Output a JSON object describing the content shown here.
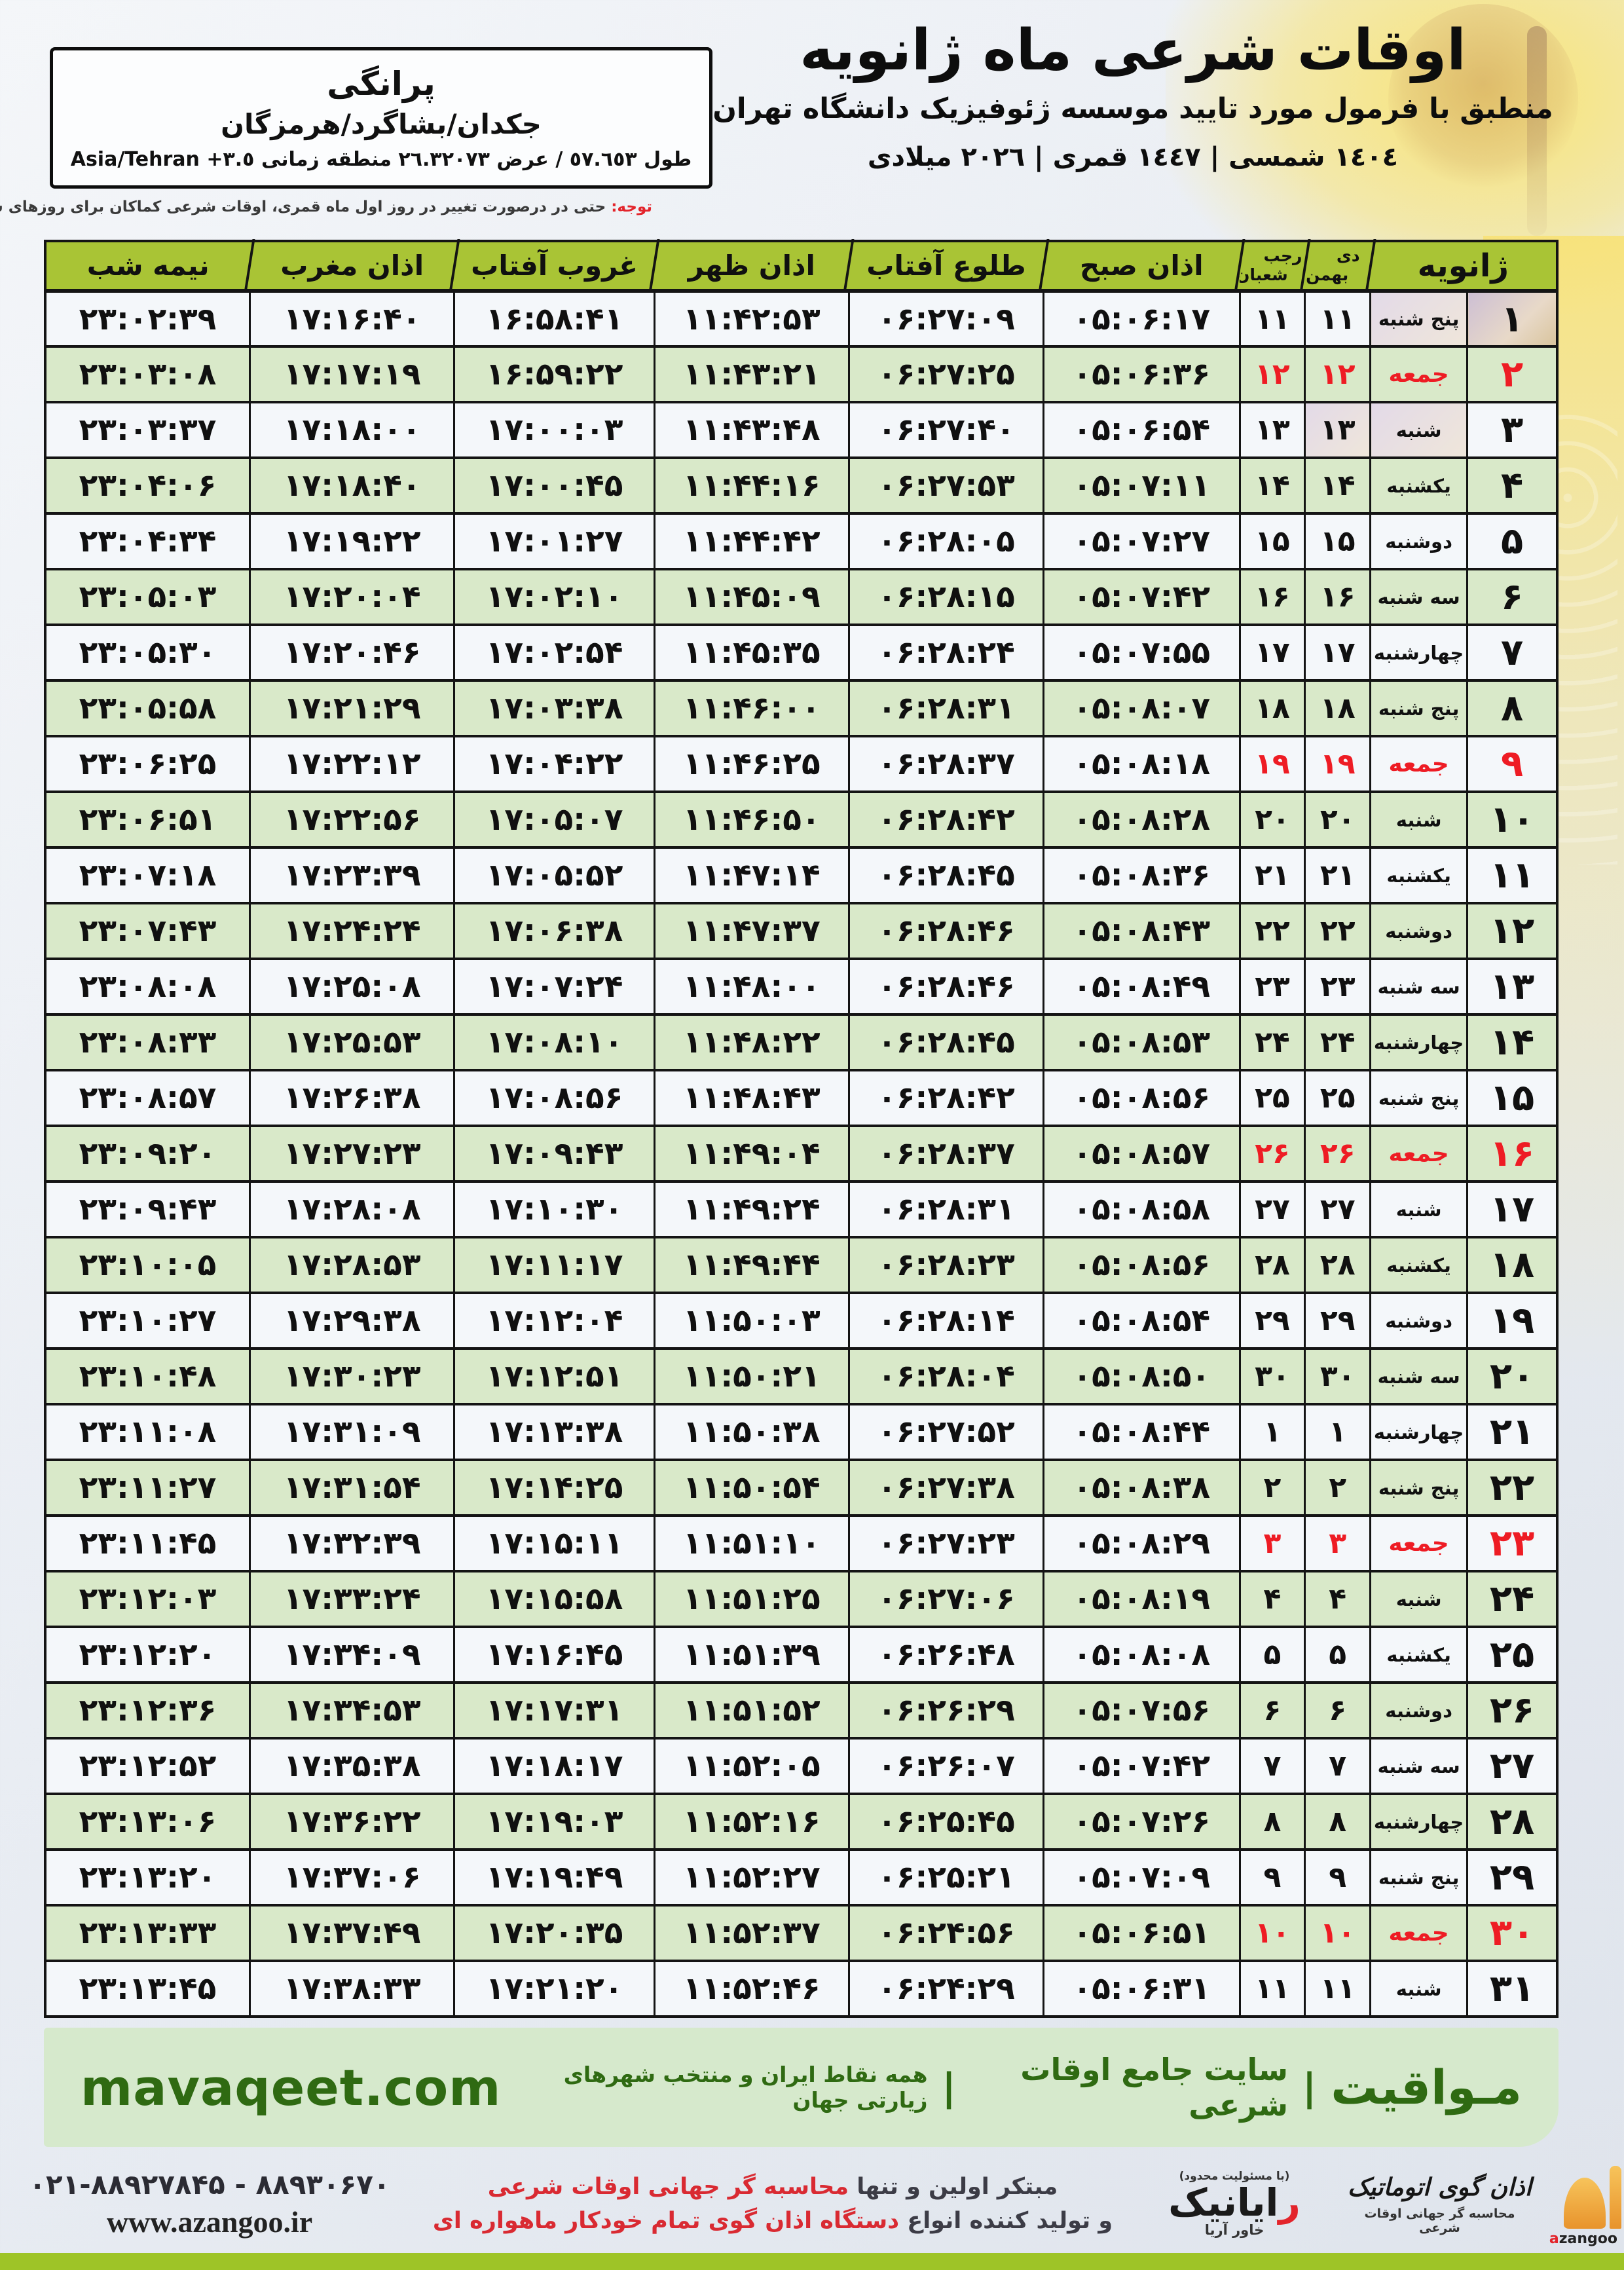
{
  "header": {
    "title": "اوقات شرعی ماه ژانویه",
    "subtitle": "منطبق با فرمول مورد تایید موسسه ژئوفیزیک دانشگاه تهران",
    "dates_line": "١٤٠٤ شمسی | ١٤٤٧ قمری | ٢٠٢٦ میلادی"
  },
  "location": {
    "name": "پرانگی",
    "region": "جکدان/بشاگرد/هرمزگان",
    "coords": "طول ٥٧.٦٥٣ / عرض ٢٦.٣٢٠٧٣ منطقه زمانی ٣.٥+ Asia/Tehran"
  },
  "note": {
    "label": "توجه:",
    "text": " حتی در درصورت تغییر در روز اول ماه قمری، اوقات شرعی کماکان برای روزهای شمسی و میلادی معتبر است."
  },
  "table": {
    "headers": {
      "january": "ژانویه",
      "jalali_top": "دی",
      "jalali_bottom": "بهمن",
      "hijri_top": "رجب",
      "hijri_bottom": "شعبان",
      "sobh": "اذان صبح",
      "tolu": "طلوع آفتاب",
      "zohr": "اذان ظهر",
      "ghorub": "غروب آفتاب",
      "maghreb": "اذان مغرب",
      "nimeshab": "نیمه شب"
    },
    "columns": [
      "day",
      "weekday",
      "jalali",
      "hijri",
      "sobh",
      "tolu",
      "zohr",
      "ghorub",
      "maghreb",
      "nimeshab"
    ],
    "rows": [
      {
        "day": "۱",
        "weekday": "پنج شنبه",
        "jalali": "۱۱",
        "hijri": "۱۱",
        "sobh": "۰۵:۰۶:۱۷",
        "tolu": "۰۶:۲۷:۰۹",
        "zohr": "۱۱:۴۲:۵۳",
        "ghorub": "۱۶:۵۸:۴۱",
        "maghreb": "۱۷:۱۶:۴۰",
        "nimeshab": "۲۳:۰۲:۳۹",
        "friday": false
      },
      {
        "day": "۲",
        "weekday": "جمعه",
        "jalali": "۱۲",
        "hijri": "۱۲",
        "sobh": "۰۵:۰۶:۳۶",
        "tolu": "۰۶:۲۷:۲۵",
        "zohr": "۱۱:۴۳:۲۱",
        "ghorub": "۱۶:۵۹:۲۲",
        "maghreb": "۱۷:۱۷:۱۹",
        "nimeshab": "۲۳:۰۳:۰۸",
        "friday": true
      },
      {
        "day": "۳",
        "weekday": "شنبه",
        "jalali": "۱۳",
        "hijri": "۱۳",
        "sobh": "۰۵:۰۶:۵۴",
        "tolu": "۰۶:۲۷:۴۰",
        "zohr": "۱۱:۴۳:۴۸",
        "ghorub": "۱۷:۰۰:۰۳",
        "maghreb": "۱۷:۱۸:۰۰",
        "nimeshab": "۲۳:۰۳:۳۷",
        "friday": false
      },
      {
        "day": "۴",
        "weekday": "یکشنبه",
        "jalali": "۱۴",
        "hijri": "۱۴",
        "sobh": "۰۵:۰۷:۱۱",
        "tolu": "۰۶:۲۷:۵۳",
        "zohr": "۱۱:۴۴:۱۶",
        "ghorub": "۱۷:۰۰:۴۵",
        "maghreb": "۱۷:۱۸:۴۰",
        "nimeshab": "۲۳:۰۴:۰۶",
        "friday": false
      },
      {
        "day": "۵",
        "weekday": "دوشنبه",
        "jalali": "۱۵",
        "hijri": "۱۵",
        "sobh": "۰۵:۰۷:۲۷",
        "tolu": "۰۶:۲۸:۰۵",
        "zohr": "۱۱:۴۴:۴۲",
        "ghorub": "۱۷:۰۱:۲۷",
        "maghreb": "۱۷:۱۹:۲۲",
        "nimeshab": "۲۳:۰۴:۳۴",
        "friday": false
      },
      {
        "day": "۶",
        "weekday": "سه شنبه",
        "jalali": "۱۶",
        "hijri": "۱۶",
        "sobh": "۰۵:۰۷:۴۲",
        "tolu": "۰۶:۲۸:۱۵",
        "zohr": "۱۱:۴۵:۰۹",
        "ghorub": "۱۷:۰۲:۱۰",
        "maghreb": "۱۷:۲۰:۰۴",
        "nimeshab": "۲۳:۰۵:۰۳",
        "friday": false
      },
      {
        "day": "۷",
        "weekday": "چهارشنبه",
        "jalali": "۱۷",
        "hijri": "۱۷",
        "sobh": "۰۵:۰۷:۵۵",
        "tolu": "۰۶:۲۸:۲۴",
        "zohr": "۱۱:۴۵:۳۵",
        "ghorub": "۱۷:۰۲:۵۴",
        "maghreb": "۱۷:۲۰:۴۶",
        "nimeshab": "۲۳:۰۵:۳۰",
        "friday": false
      },
      {
        "day": "۸",
        "weekday": "پنج شنبه",
        "jalali": "۱۸",
        "hijri": "۱۸",
        "sobh": "۰۵:۰۸:۰۷",
        "tolu": "۰۶:۲۸:۳۱",
        "zohr": "۱۱:۴۶:۰۰",
        "ghorub": "۱۷:۰۳:۳۸",
        "maghreb": "۱۷:۲۱:۲۹",
        "nimeshab": "۲۳:۰۵:۵۸",
        "friday": false
      },
      {
        "day": "۹",
        "weekday": "جمعه",
        "jalali": "۱۹",
        "hijri": "۱۹",
        "sobh": "۰۵:۰۸:۱۸",
        "tolu": "۰۶:۲۸:۳۷",
        "zohr": "۱۱:۴۶:۲۵",
        "ghorub": "۱۷:۰۴:۲۲",
        "maghreb": "۱۷:۲۲:۱۲",
        "nimeshab": "۲۳:۰۶:۲۵",
        "friday": true
      },
      {
        "day": "۱۰",
        "weekday": "شنبه",
        "jalali": "۲۰",
        "hijri": "۲۰",
        "sobh": "۰۵:۰۸:۲۸",
        "tolu": "۰۶:۲۸:۴۲",
        "zohr": "۱۱:۴۶:۵۰",
        "ghorub": "۱۷:۰۵:۰۷",
        "maghreb": "۱۷:۲۲:۵۶",
        "nimeshab": "۲۳:۰۶:۵۱",
        "friday": false
      },
      {
        "day": "۱۱",
        "weekday": "یکشنبه",
        "jalali": "۲۱",
        "hijri": "۲۱",
        "sobh": "۰۵:۰۸:۳۶",
        "tolu": "۰۶:۲۸:۴۵",
        "zohr": "۱۱:۴۷:۱۴",
        "ghorub": "۱۷:۰۵:۵۲",
        "maghreb": "۱۷:۲۳:۳۹",
        "nimeshab": "۲۳:۰۷:۱۸",
        "friday": false
      },
      {
        "day": "۱۲",
        "weekday": "دوشنبه",
        "jalali": "۲۲",
        "hijri": "۲۲",
        "sobh": "۰۵:۰۸:۴۳",
        "tolu": "۰۶:۲۸:۴۶",
        "zohr": "۱۱:۴۷:۳۷",
        "ghorub": "۱۷:۰۶:۳۸",
        "maghreb": "۱۷:۲۴:۲۴",
        "nimeshab": "۲۳:۰۷:۴۳",
        "friday": false
      },
      {
        "day": "۱۳",
        "weekday": "سه شنبه",
        "jalali": "۲۳",
        "hijri": "۲۳",
        "sobh": "۰۵:۰۸:۴۹",
        "tolu": "۰۶:۲۸:۴۶",
        "zohr": "۱۱:۴۸:۰۰",
        "ghorub": "۱۷:۰۷:۲۴",
        "maghreb": "۱۷:۲۵:۰۸",
        "nimeshab": "۲۳:۰۸:۰۸",
        "friday": false
      },
      {
        "day": "۱۴",
        "weekday": "چهارشنبه",
        "jalali": "۲۴",
        "hijri": "۲۴",
        "sobh": "۰۵:۰۸:۵۳",
        "tolu": "۰۶:۲۸:۴۵",
        "zohr": "۱۱:۴۸:۲۲",
        "ghorub": "۱۷:۰۸:۱۰",
        "maghreb": "۱۷:۲۵:۵۳",
        "nimeshab": "۲۳:۰۸:۳۳",
        "friday": false
      },
      {
        "day": "۱۵",
        "weekday": "پنج شنبه",
        "jalali": "۲۵",
        "hijri": "۲۵",
        "sobh": "۰۵:۰۸:۵۶",
        "tolu": "۰۶:۲۸:۴۲",
        "zohr": "۱۱:۴۸:۴۳",
        "ghorub": "۱۷:۰۸:۵۶",
        "maghreb": "۱۷:۲۶:۳۸",
        "nimeshab": "۲۳:۰۸:۵۷",
        "friday": false
      },
      {
        "day": "۱۶",
        "weekday": "جمعه",
        "jalali": "۲۶",
        "hijri": "۲۶",
        "sobh": "۰۵:۰۸:۵۷",
        "tolu": "۰۶:۲۸:۳۷",
        "zohr": "۱۱:۴۹:۰۴",
        "ghorub": "۱۷:۰۹:۴۳",
        "maghreb": "۱۷:۲۷:۲۳",
        "nimeshab": "۲۳:۰۹:۲۰",
        "friday": true
      },
      {
        "day": "۱۷",
        "weekday": "شنبه",
        "jalali": "۲۷",
        "hijri": "۲۷",
        "sobh": "۰۵:۰۸:۵۸",
        "tolu": "۰۶:۲۸:۳۱",
        "zohr": "۱۱:۴۹:۲۴",
        "ghorub": "۱۷:۱۰:۳۰",
        "maghreb": "۱۷:۲۸:۰۸",
        "nimeshab": "۲۳:۰۹:۴۳",
        "friday": false
      },
      {
        "day": "۱۸",
        "weekday": "یکشنبه",
        "jalali": "۲۸",
        "hijri": "۲۸",
        "sobh": "۰۵:۰۸:۵۶",
        "tolu": "۰۶:۲۸:۲۳",
        "zohr": "۱۱:۴۹:۴۴",
        "ghorub": "۱۷:۱۱:۱۷",
        "maghreb": "۱۷:۲۸:۵۳",
        "nimeshab": "۲۳:۱۰:۰۵",
        "friday": false
      },
      {
        "day": "۱۹",
        "weekday": "دوشنبه",
        "jalali": "۲۹",
        "hijri": "۲۹",
        "sobh": "۰۵:۰۸:۵۴",
        "tolu": "۰۶:۲۸:۱۴",
        "zohr": "۱۱:۵۰:۰۳",
        "ghorub": "۱۷:۱۲:۰۴",
        "maghreb": "۱۷:۲۹:۳۸",
        "nimeshab": "۲۳:۱۰:۲۷",
        "friday": false
      },
      {
        "day": "۲۰",
        "weekday": "سه شنبه",
        "jalali": "۳۰",
        "hijri": "۳۰",
        "sobh": "۰۵:۰۸:۵۰",
        "tolu": "۰۶:۲۸:۰۴",
        "zohr": "۱۱:۵۰:۲۱",
        "ghorub": "۱۷:۱۲:۵۱",
        "maghreb": "۱۷:۳۰:۲۳",
        "nimeshab": "۲۳:۱۰:۴۸",
        "friday": false
      },
      {
        "day": "۲۱",
        "weekday": "چهارشنبه",
        "jalali": "۱",
        "hijri": "۱",
        "sobh": "۰۵:۰۸:۴۴",
        "tolu": "۰۶:۲۷:۵۲",
        "zohr": "۱۱:۵۰:۳۸",
        "ghorub": "۱۷:۱۳:۳۸",
        "maghreb": "۱۷:۳۱:۰۹",
        "nimeshab": "۲۳:۱۱:۰۸",
        "friday": false
      },
      {
        "day": "۲۲",
        "weekday": "پنج شنبه",
        "jalali": "۲",
        "hijri": "۲",
        "sobh": "۰۵:۰۸:۳۸",
        "tolu": "۰۶:۲۷:۳۸",
        "zohr": "۱۱:۵۰:۵۴",
        "ghorub": "۱۷:۱۴:۲۵",
        "maghreb": "۱۷:۳۱:۵۴",
        "nimeshab": "۲۳:۱۱:۲۷",
        "friday": false
      },
      {
        "day": "۲۳",
        "weekday": "جمعه",
        "jalali": "۳",
        "hijri": "۳",
        "sobh": "۰۵:۰۸:۲۹",
        "tolu": "۰۶:۲۷:۲۳",
        "zohr": "۱۱:۵۱:۱۰",
        "ghorub": "۱۷:۱۵:۱۱",
        "maghreb": "۱۷:۳۲:۳۹",
        "nimeshab": "۲۳:۱۱:۴۵",
        "friday": true
      },
      {
        "day": "۲۴",
        "weekday": "شنبه",
        "jalali": "۴",
        "hijri": "۴",
        "sobh": "۰۵:۰۸:۱۹",
        "tolu": "۰۶:۲۷:۰۶",
        "zohr": "۱۱:۵۱:۲۵",
        "ghorub": "۱۷:۱۵:۵۸",
        "maghreb": "۱۷:۳۳:۲۴",
        "nimeshab": "۲۳:۱۲:۰۳",
        "friday": false
      },
      {
        "day": "۲۵",
        "weekday": "یکشنبه",
        "jalali": "۵",
        "hijri": "۵",
        "sobh": "۰۵:۰۸:۰۸",
        "tolu": "۰۶:۲۶:۴۸",
        "zohr": "۱۱:۵۱:۳۹",
        "ghorub": "۱۷:۱۶:۴۵",
        "maghreb": "۱۷:۳۴:۰۹",
        "nimeshab": "۲۳:۱۲:۲۰",
        "friday": false
      },
      {
        "day": "۲۶",
        "weekday": "دوشنبه",
        "jalali": "۶",
        "hijri": "۶",
        "sobh": "۰۵:۰۷:۵۶",
        "tolu": "۰۶:۲۶:۲۹",
        "zohr": "۱۱:۵۱:۵۲",
        "ghorub": "۱۷:۱۷:۳۱",
        "maghreb": "۱۷:۳۴:۵۳",
        "nimeshab": "۲۳:۱۲:۳۶",
        "friday": false
      },
      {
        "day": "۲۷",
        "weekday": "سه شنبه",
        "jalali": "۷",
        "hijri": "۷",
        "sobh": "۰۵:۰۷:۴۲",
        "tolu": "۰۶:۲۶:۰۷",
        "zohr": "۱۱:۵۲:۰۵",
        "ghorub": "۱۷:۱۸:۱۷",
        "maghreb": "۱۷:۳۵:۳۸",
        "nimeshab": "۲۳:۱۲:۵۲",
        "friday": false
      },
      {
        "day": "۲۸",
        "weekday": "چهارشنبه",
        "jalali": "۸",
        "hijri": "۸",
        "sobh": "۰۵:۰۷:۲۶",
        "tolu": "۰۶:۲۵:۴۵",
        "zohr": "۱۱:۵۲:۱۶",
        "ghorub": "۱۷:۱۹:۰۳",
        "maghreb": "۱۷:۳۶:۲۲",
        "nimeshab": "۲۳:۱۳:۰۶",
        "friday": false
      },
      {
        "day": "۲۹",
        "weekday": "پنج شنبه",
        "jalali": "۹",
        "hijri": "۹",
        "sobh": "۰۵:۰۷:۰۹",
        "tolu": "۰۶:۲۵:۲۱",
        "zohr": "۱۱:۵۲:۲۷",
        "ghorub": "۱۷:۱۹:۴۹",
        "maghreb": "۱۷:۳۷:۰۶",
        "nimeshab": "۲۳:۱۳:۲۰",
        "friday": false
      },
      {
        "day": "۳۰",
        "weekday": "جمعه",
        "jalali": "۱۰",
        "hijri": "۱۰",
        "sobh": "۰۵:۰۶:۵۱",
        "tolu": "۰۶:۲۴:۵۶",
        "zohr": "۱۱:۵۲:۳۷",
        "ghorub": "۱۷:۲۰:۳۵",
        "maghreb": "۱۷:۳۷:۴۹",
        "nimeshab": "۲۳:۱۳:۳۳",
        "friday": true
      },
      {
        "day": "۳۱",
        "weekday": "شنبه",
        "jalali": "۱۱",
        "hijri": "۱۱",
        "sobh": "۰۵:۰۶:۳۱",
        "tolu": "۰۶:۲۴:۲۹",
        "zohr": "۱۱:۵۲:۴۶",
        "ghorub": "۱۷:۲۱:۲۰",
        "maghreb": "۱۷:۳۸:۳۳",
        "nimeshab": "۲۳:۱۳:۴۵",
        "friday": false
      }
    ]
  },
  "footer_band": {
    "brand": "مـواقیت",
    "pipe": "|",
    "site_desc": "سایت جامع اوقات شرعی",
    "coverage": "همه نقاط ایران و منتخب شهرهای زیارتی جهان",
    "domain": "mavaqeet.com"
  },
  "producer": {
    "line1_dark": "مبتکر اولین و تنها ",
    "line1_red": "محاسبه گر جهانی اوقات شرعی",
    "line2_dark": "و تولید کننده انواع ",
    "line2_red": "دستگاه اذان گوی تمام خودکار ماهواره ای",
    "rayanik_paren": "(با مسئولیت محدود)",
    "rayanik_red": "ر",
    "rayanik_rest": "ایانیک",
    "rayanik_sub": "خاور آریا",
    "azangoo_title": "اذان گوی اتوماتیک",
    "azangoo_sub": "محاسبه گر جهانی اوقات شرعی",
    "azangoo_latin_a": "a",
    "azangoo_latin_rest": "zangoo"
  },
  "contact": {
    "phones": "۰۲۱-۸۸۹۲۷۸۴۵ - ۸۸۹۳۰۶۷۰",
    "website": "www.azangoo.ir"
  },
  "colors": {
    "header_green": "#a9c435",
    "row_green": "#d9e9c9",
    "row_light": "#f4f7fa",
    "friday_red": "#ee1c24",
    "footer_band_green": "#d6e9cc",
    "footer_text_green": "#2f6a12",
    "bottom_bar_green": "#9ec427"
  }
}
